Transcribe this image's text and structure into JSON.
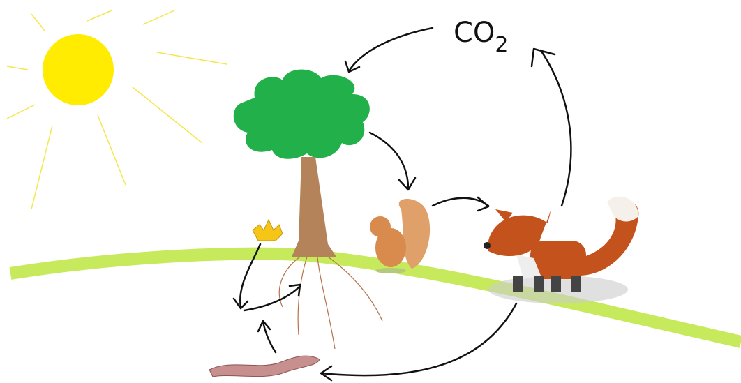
{
  "labels": {
    "co2": {
      "text": "CO",
      "subscript": "2"
    }
  }
}
